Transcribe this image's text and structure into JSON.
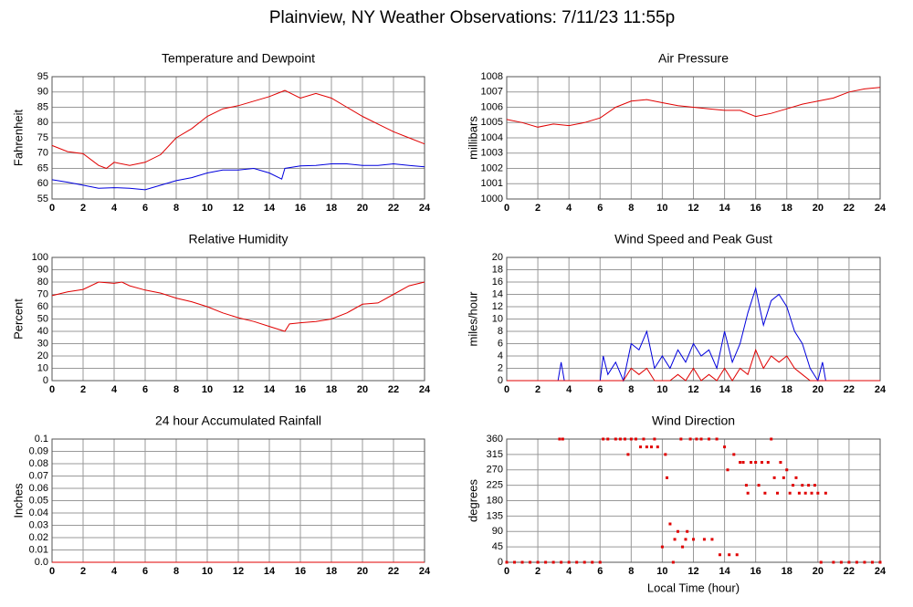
{
  "page_title": "Plainview, NY Weather Observations: 7/11/23 11:55p",
  "chart_data": [
    {
      "type": "line",
      "title": "Temperature and Dewpoint",
      "ylabel": "Fahrenheit",
      "xlim": [
        0,
        24
      ],
      "xticks": [
        0,
        2,
        4,
        6,
        8,
        10,
        12,
        14,
        16,
        18,
        20,
        22,
        24
      ],
      "ylim": [
        55,
        95
      ],
      "yticks": [
        55,
        60,
        65,
        70,
        75,
        80,
        85,
        90,
        95
      ],
      "grid": true,
      "series": [
        {
          "name": "Temperature",
          "color": "#e00000",
          "x": [
            0,
            1,
            2,
            3,
            3.5,
            4,
            5,
            6,
            7,
            8,
            9,
            10,
            11,
            12,
            13,
            14,
            15,
            16,
            17,
            18,
            19,
            20,
            21,
            22,
            23,
            24
          ],
          "values": [
            72.5,
            70.5,
            69.8,
            66,
            65,
            67,
            66,
            67,
            69.5,
            75,
            78,
            82,
            84.5,
            85.5,
            87,
            88.5,
            90.5,
            88,
            89.5,
            88,
            85,
            82,
            79.5,
            77,
            75,
            73
          ]
        },
        {
          "name": "Dewpoint",
          "color": "#0000dd",
          "x": [
            0,
            1,
            2,
            3,
            4,
            5,
            6,
            7,
            8,
            9,
            10,
            11,
            12,
            13,
            14,
            14.8,
            15,
            16,
            17,
            18,
            19,
            20,
            21,
            22,
            23,
            24
          ],
          "values": [
            61.3,
            60.5,
            59.5,
            58.5,
            58.7,
            58.5,
            58,
            59.5,
            61,
            62,
            63.5,
            64.5,
            64.5,
            65,
            63.5,
            61.5,
            65,
            65.8,
            66,
            66.5,
            66.5,
            66,
            66,
            66.5,
            66,
            65.5
          ]
        }
      ]
    },
    {
      "type": "line",
      "title": "Air Pressure",
      "ylabel": "millibars",
      "xlim": [
        0,
        24
      ],
      "xticks": [
        0,
        2,
        4,
        6,
        8,
        10,
        12,
        14,
        16,
        18,
        20,
        22,
        24
      ],
      "ylim": [
        1000,
        1008
      ],
      "yticks": [
        1000,
        1001,
        1002,
        1003,
        1004,
        1005,
        1006,
        1007,
        1008
      ],
      "grid": true,
      "series": [
        {
          "name": "Pressure",
          "color": "#e00000",
          "x": [
            0,
            1,
            2,
            3,
            4,
            5,
            6,
            7,
            8,
            9,
            10,
            11,
            12,
            13,
            14,
            15,
            16,
            17,
            18,
            19,
            20,
            21,
            22,
            23,
            24
          ],
          "values": [
            1005.2,
            1005.0,
            1004.7,
            1004.9,
            1004.8,
            1005.0,
            1005.3,
            1006.0,
            1006.4,
            1006.5,
            1006.3,
            1006.1,
            1006.0,
            1005.9,
            1005.8,
            1005.8,
            1005.4,
            1005.6,
            1005.9,
            1006.2,
            1006.4,
            1006.6,
            1007.0,
            1007.2,
            1007.3
          ]
        }
      ]
    },
    {
      "type": "line",
      "title": "Relative Humidity",
      "ylabel": "Percent",
      "xlim": [
        0,
        24
      ],
      "xticks": [
        0,
        2,
        4,
        6,
        8,
        10,
        12,
        14,
        16,
        18,
        20,
        22,
        24
      ],
      "ylim": [
        0,
        100
      ],
      "yticks": [
        0,
        10,
        20,
        30,
        40,
        50,
        60,
        70,
        80,
        90,
        100
      ],
      "grid": true,
      "series": [
        {
          "name": "Humidity",
          "color": "#e00000",
          "x": [
            0,
            1,
            2,
            3,
            4,
            4.5,
            5,
            6,
            7,
            8,
            9,
            10,
            11,
            12,
            13,
            14,
            15,
            15.3,
            16,
            17,
            18,
            19,
            20,
            21,
            22,
            23,
            24
          ],
          "values": [
            69,
            72,
            74,
            80,
            79,
            80,
            77,
            73.5,
            71,
            67,
            64,
            60,
            55,
            51,
            48,
            44,
            40,
            46,
            47,
            48,
            50,
            55,
            62,
            63,
            70,
            77,
            80
          ]
        }
      ]
    },
    {
      "type": "line",
      "title": "Wind Speed and Peak Gust",
      "ylabel": "miles/hour",
      "xlim": [
        0,
        24
      ],
      "xticks": [
        0,
        2,
        4,
        6,
        8,
        10,
        12,
        14,
        16,
        18,
        20,
        22,
        24
      ],
      "ylim": [
        0,
        20
      ],
      "yticks": [
        0,
        2,
        4,
        6,
        8,
        10,
        12,
        14,
        16,
        18,
        20
      ],
      "grid": true,
      "series": [
        {
          "name": "Peak Gust",
          "color": "#0000dd",
          "x": [
            0,
            3.3,
            3.5,
            3.7,
            6,
            6.2,
            6.5,
            7,
            7.5,
            8,
            8.5,
            9,
            9.5,
            10,
            10.5,
            11,
            11.5,
            12,
            12.5,
            13,
            13.5,
            14,
            14.5,
            15,
            15.5,
            16,
            16.5,
            17,
            17.5,
            18,
            18.5,
            19,
            19.5,
            20,
            20.3,
            20.5,
            24
          ],
          "values": [
            0,
            0,
            3,
            0,
            0,
            4,
            1,
            3,
            0,
            6,
            5,
            8,
            2,
            4,
            2,
            5,
            3,
            6,
            4,
            5,
            2,
            8,
            3,
            6,
            11,
            15,
            9,
            13,
            14,
            12,
            8,
            6,
            2,
            0,
            3,
            0,
            0
          ]
        },
        {
          "name": "Wind Speed",
          "color": "#e00000",
          "x": [
            0,
            7.5,
            8,
            8.5,
            9,
            9.5,
            10.5,
            11,
            11.5,
            12,
            12.5,
            13,
            13.5,
            14,
            14.5,
            15,
            15.5,
            16,
            16.5,
            17,
            17.5,
            18,
            18.5,
            19,
            19.5,
            24
          ],
          "values": [
            0,
            0,
            2,
            1,
            2,
            0,
            0,
            1,
            0,
            2,
            0,
            1,
            0,
            2,
            0,
            2,
            1,
            5,
            2,
            4,
            3,
            4,
            2,
            1,
            0,
            0
          ]
        }
      ]
    },
    {
      "type": "line",
      "title": "24 hour Accumulated Rainfall",
      "ylabel": "Inches",
      "xlim": [
        0,
        24
      ],
      "xticks": [
        0,
        2,
        4,
        6,
        8,
        10,
        12,
        14,
        16,
        18,
        20,
        22,
        24
      ],
      "ylim": [
        0,
        0.1
      ],
      "yticks": [
        {
          "value": 0,
          "label": "0.0"
        },
        0.01,
        0.02,
        0.03,
        0.04,
        0.05,
        0.06,
        0.07,
        0.08,
        0.09,
        0.1
      ],
      "grid": true,
      "series": [
        {
          "name": "Rainfall",
          "color": "#e00000",
          "x": [
            0,
            24
          ],
          "values": [
            0,
            0
          ]
        }
      ]
    },
    {
      "type": "scatter",
      "title": "Wind Direction",
      "ylabel": "degrees",
      "xlabel": "Local Time (hour)",
      "xlim": [
        0,
        24
      ],
      "xticks": [
        0,
        2,
        4,
        6,
        8,
        10,
        12,
        14,
        16,
        18,
        20,
        22,
        24
      ],
      "ylim": [
        0,
        360
      ],
      "yticks": [
        0,
        45,
        90,
        135,
        180,
        225,
        270,
        315,
        360
      ],
      "grid": true,
      "series": [
        {
          "name": "Direction",
          "color": "#e00000",
          "x": [
            0,
            0.5,
            1,
            1.5,
            2,
            2.5,
            3,
            3.5,
            4,
            4.5,
            5,
            5.5,
            6,
            3.4,
            3.6,
            6.2,
            6.5,
            7,
            7.3,
            7.6,
            7.8,
            8,
            8.3,
            8.6,
            8.8,
            9,
            9.3,
            9.5,
            9.7,
            10,
            10.2,
            10.3,
            10.5,
            10.7,
            10.8,
            11,
            11.2,
            11.3,
            11.5,
            11.6,
            11.8,
            12,
            12.2,
            12.5,
            12.7,
            13,
            13.2,
            13.5,
            13.7,
            14,
            14.2,
            14.3,
            14.6,
            14.8,
            15,
            15.2,
            15.4,
            15.5,
            15.7,
            16,
            16.2,
            16.4,
            16.6,
            16.8,
            17,
            17.2,
            17.4,
            17.6,
            17.8,
            18,
            18.2,
            18.4,
            18.6,
            18.8,
            19,
            19.2,
            19.4,
            19.6,
            19.8,
            20,
            20.2,
            20.5,
            21,
            21.5,
            22,
            22.5,
            23,
            23.5,
            24
          ],
          "values": [
            0,
            0,
            0,
            0,
            0,
            0,
            0,
            0,
            0,
            0,
            0,
            0,
            0,
            360,
            360,
            360,
            360,
            360,
            360,
            360,
            315,
            360,
            360,
            337,
            360,
            337,
            337,
            360,
            337,
            45,
            315,
            247,
            112,
            0,
            67,
            90,
            360,
            45,
            67,
            90,
            360,
            67,
            360,
            360,
            67,
            360,
            67,
            360,
            22,
            337,
            270,
            22,
            315,
            22,
            292,
            292,
            225,
            202,
            292,
            292,
            225,
            292,
            202,
            292,
            360,
            247,
            202,
            292,
            247,
            270,
            202,
            225,
            247,
            202,
            225,
            202,
            225,
            202,
            225,
            202,
            0,
            202,
            0,
            0,
            0,
            0,
            0,
            0,
            0
          ]
        }
      ]
    }
  ]
}
